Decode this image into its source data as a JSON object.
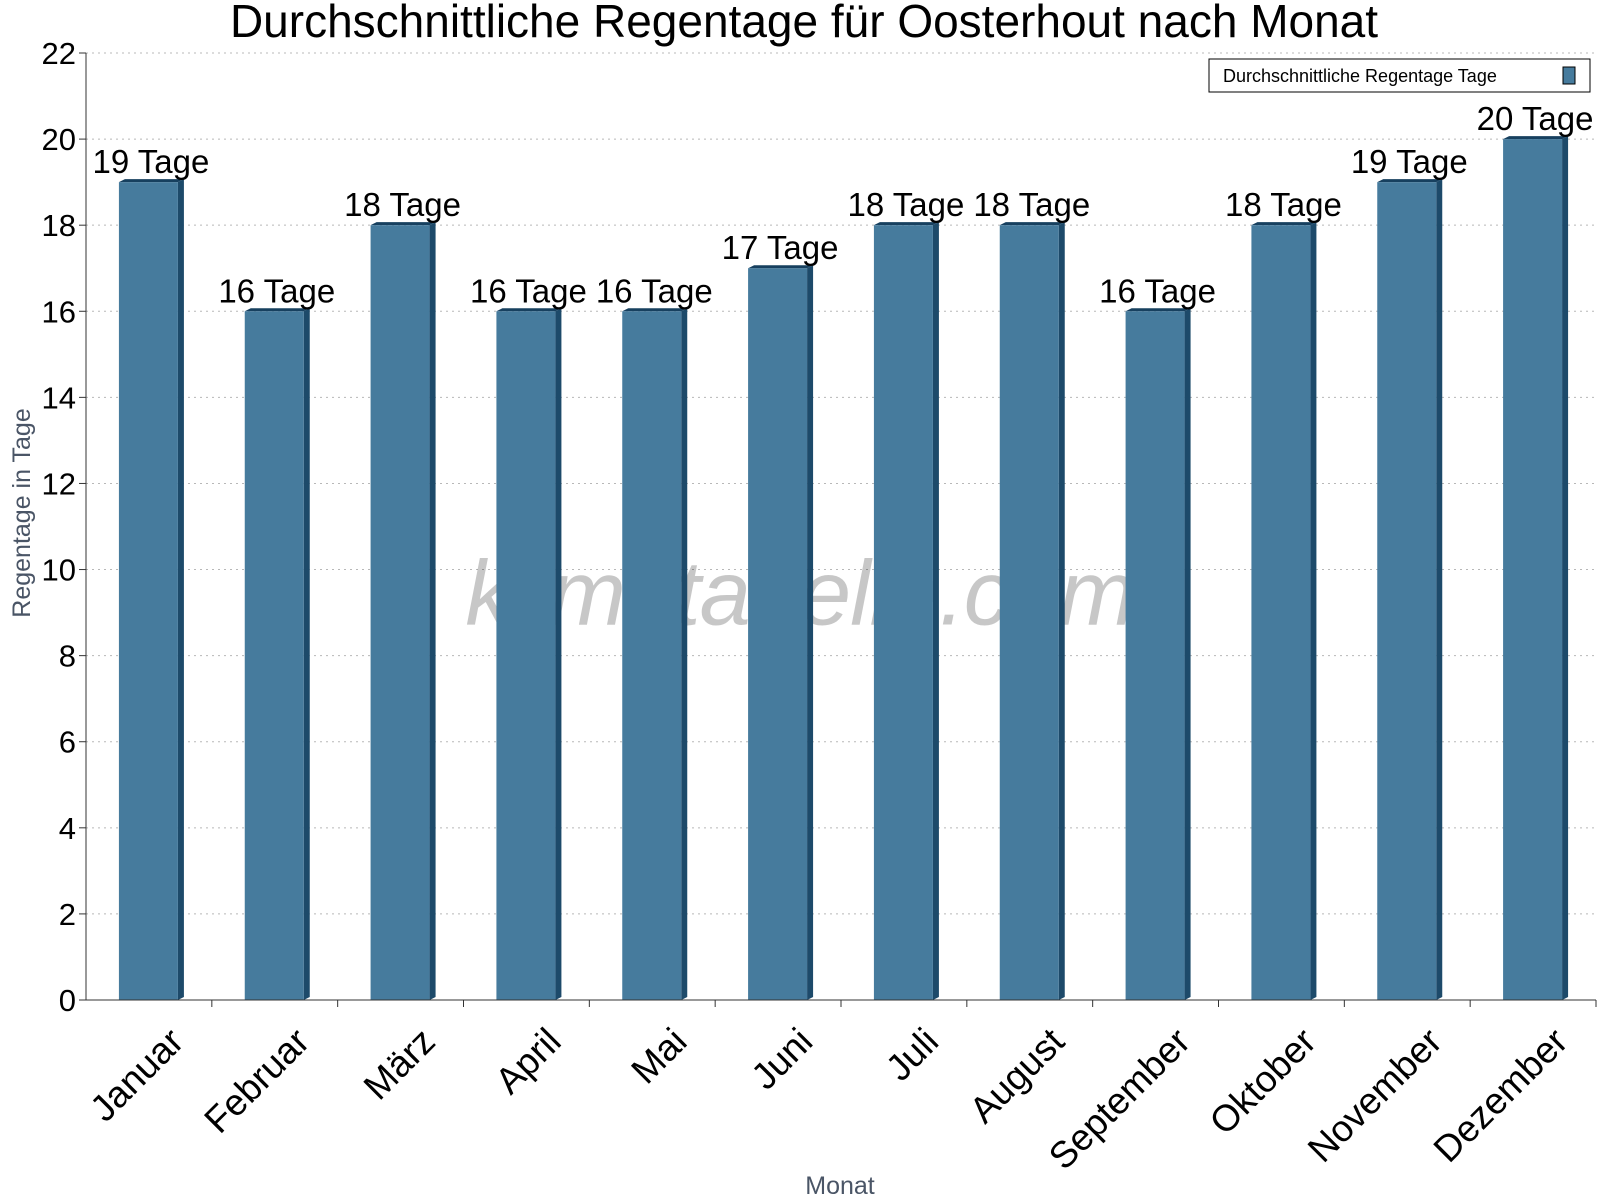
{
  "watermark": "klimatabelle.com",
  "colors": {
    "bar_front": "#467b9d",
    "bar_side": "#1d4a6a",
    "bar_top": "#17405f",
    "grid": "#b8b8b8",
    "axis": "#333333"
  },
  "chart_data": {
    "type": "bar",
    "title": "Durchschnittliche Regentage für Oosterhout nach Monat",
    "xlabel": "Monat",
    "ylabel": "Regentage in Tage",
    "categories": [
      "Januar",
      "Februar",
      "März",
      "April",
      "Mai",
      "Juni",
      "Juli",
      "August",
      "September",
      "Oktober",
      "November",
      "Dezember"
    ],
    "series": [
      {
        "name": "Durchschnittliche Regentage Tage",
        "values": [
          19,
          16,
          18,
          16,
          16,
          17,
          18,
          18,
          16,
          18,
          19,
          20
        ],
        "labels": [
          "19 Tage",
          "16 Tage",
          "18 Tage",
          "16 Tage",
          "16 Tage",
          "17 Tage",
          "18 Tage",
          "18 Tage",
          "16 Tage",
          "18 Tage",
          "19 Tage",
          "20 Tage"
        ]
      }
    ],
    "ylim": [
      0,
      22
    ],
    "yticks": [
      0,
      2,
      4,
      6,
      8,
      10,
      12,
      14,
      16,
      18,
      20,
      22
    ],
    "grid": true,
    "legend_position": "top-right"
  }
}
